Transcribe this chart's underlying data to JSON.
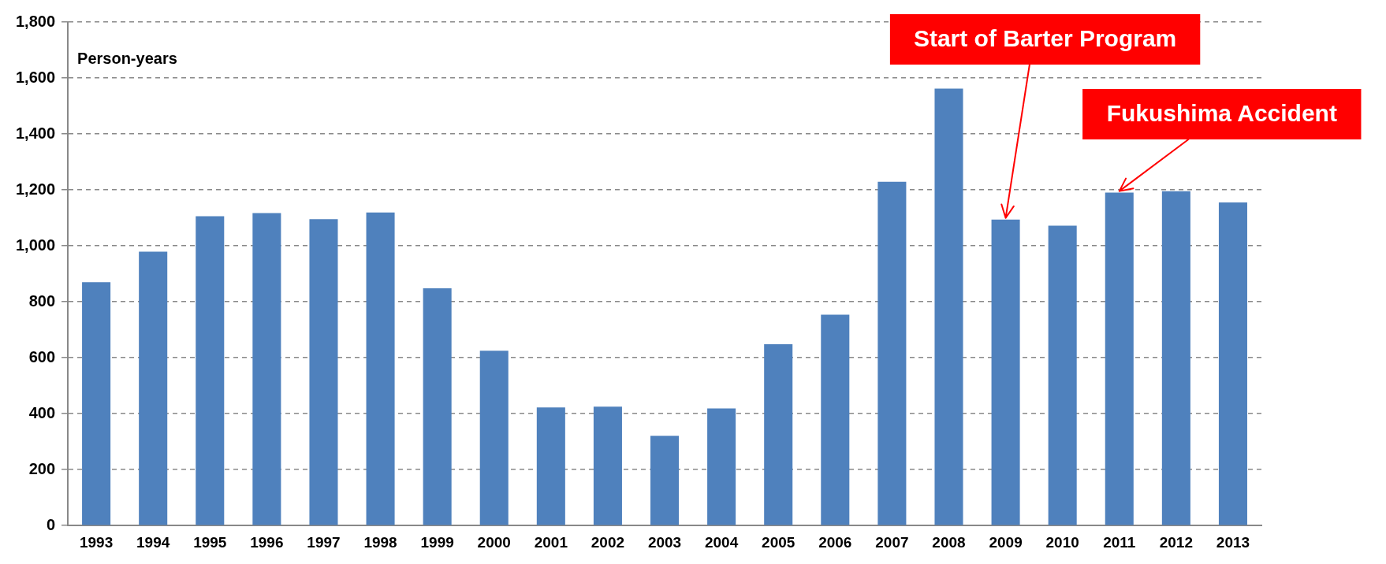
{
  "chart_data": {
    "type": "bar",
    "ylabel": "Person-years",
    "categories": [
      "1993",
      "1994",
      "1995",
      "1996",
      "1997",
      "1998",
      "1999",
      "2000",
      "2001",
      "2002",
      "2003",
      "2004",
      "2005",
      "2006",
      "2007",
      "2008",
      "2009",
      "2010",
      "2011",
      "2012",
      "2013"
    ],
    "values": [
      870,
      979,
      1106,
      1117,
      1095,
      1119,
      848,
      625,
      422,
      425,
      321,
      419,
      648,
      754,
      1229,
      1562,
      1094,
      1072,
      1190,
      1195,
      1155
    ],
    "color": "#4f81bd",
    "ylim": [
      0,
      1800
    ],
    "yticks": [
      0,
      200,
      400,
      600,
      800,
      {
        "value": 1000,
        "label": "1,000"
      },
      {
        "value": 1200,
        "label": "1,200"
      },
      {
        "value": 1400,
        "label": "1,400"
      },
      {
        "value": 1600,
        "label": "1,600"
      },
      {
        "value": 1800,
        "label": "1,800"
      }
    ],
    "grid": "y",
    "annotations": [
      {
        "text": "Start of Barter Program",
        "x": "2009",
        "y": 1094
      },
      {
        "text": "Fukushima Accident",
        "x": "2011",
        "y": 1190
      }
    ]
  }
}
